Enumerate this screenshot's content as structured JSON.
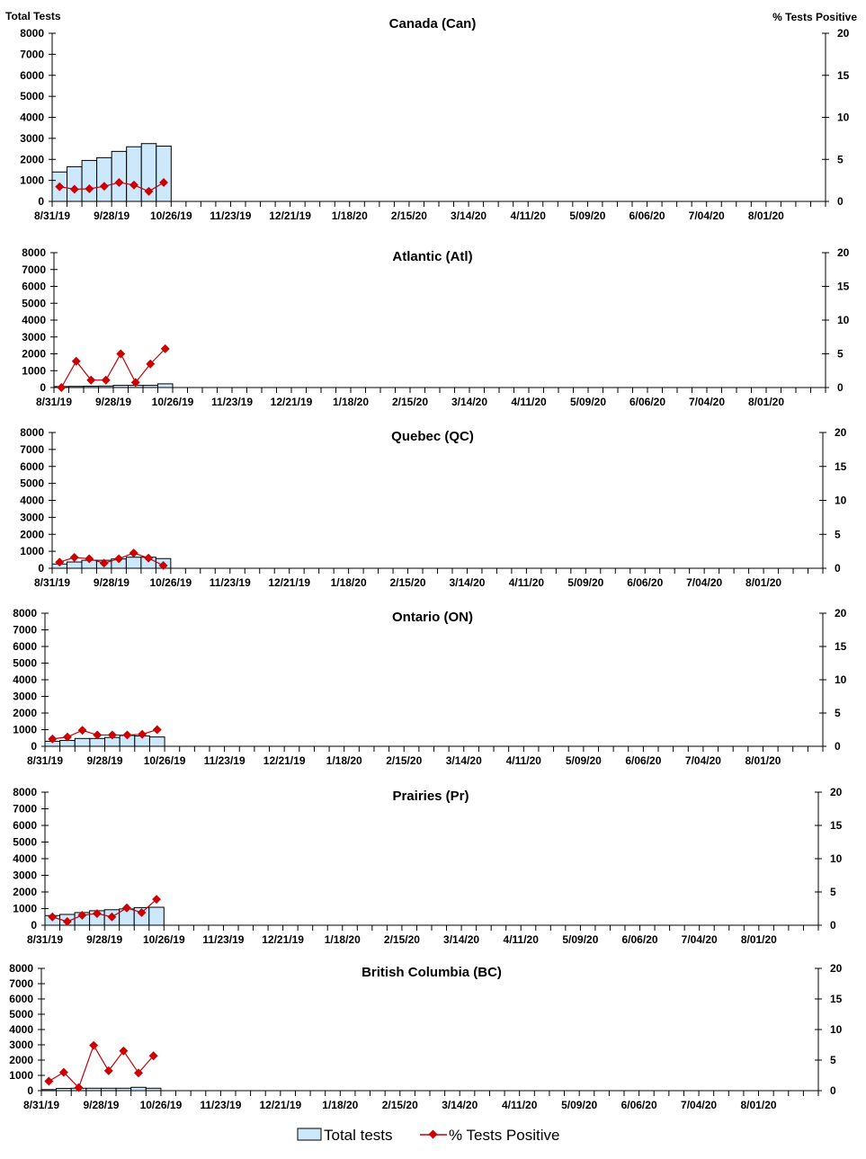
{
  "chart_data": [
    {
      "type": "bar+line",
      "title": "Canada (Can)",
      "ylabel": "Total Tests",
      "y2label": "% Tests Positive",
      "ylim": [
        0,
        8000
      ],
      "y2lim": [
        0,
        20
      ],
      "x": [
        "8/31/19",
        "9/07/19",
        "9/14/19",
        "9/21/19",
        "9/28/19",
        "10/05/19",
        "10/12/19",
        "10/19/19"
      ],
      "series": [
        {
          "name": "Total tests",
          "type": "bar",
          "axis": "left",
          "values": [
            1400,
            1650,
            1950,
            2080,
            2380,
            2600,
            2750,
            2630
          ]
        },
        {
          "name": "% Tests Positive",
          "type": "line",
          "axis": "right",
          "values": [
            1.75,
            1.45,
            1.5,
            1.8,
            2.25,
            1.95,
            1.2,
            2.25
          ]
        }
      ]
    },
    {
      "type": "bar+line",
      "title": "Atlantic (Atl)",
      "ylim": [
        0,
        8000
      ],
      "y2lim": [
        0,
        20
      ],
      "x": [
        "8/31/19",
        "9/07/19",
        "9/14/19",
        "9/21/19",
        "9/28/19",
        "10/05/19",
        "10/12/19",
        "10/19/19"
      ],
      "series": [
        {
          "name": "Total tests",
          "type": "bar",
          "axis": "left",
          "values": [
            60,
            70,
            80,
            90,
            130,
            130,
            130,
            220
          ]
        },
        {
          "name": "% Tests Positive",
          "type": "line",
          "axis": "right",
          "values": [
            0,
            3.9,
            1.1,
            1.1,
            5.0,
            0.75,
            3.5,
            5.75
          ]
        }
      ]
    },
    {
      "type": "bar+line",
      "title": "Quebec (QC)",
      "ylim": [
        0,
        8000
      ],
      "y2lim": [
        0,
        20
      ],
      "x": [
        "8/31/19",
        "9/07/19",
        "9/14/19",
        "9/21/19",
        "9/28/19",
        "10/05/19",
        "10/12/19",
        "10/19/19"
      ],
      "series": [
        {
          "name": "Total tests",
          "type": "bar",
          "axis": "left",
          "values": [
            250,
            370,
            470,
            470,
            550,
            650,
            650,
            570
          ]
        },
        {
          "name": "% Tests Positive",
          "type": "line",
          "axis": "right",
          "values": [
            0.9,
            1.6,
            1.4,
            0.75,
            1.4,
            2.25,
            1.5,
            0.4
          ]
        }
      ]
    },
    {
      "type": "bar+line",
      "title": "Ontario (ON)",
      "ylim": [
        0,
        8000
      ],
      "y2lim": [
        0,
        20
      ],
      "x": [
        "8/31/19",
        "9/07/19",
        "9/14/19",
        "9/21/19",
        "9/28/19",
        "10/05/19",
        "10/12/19",
        "10/19/19"
      ],
      "series": [
        {
          "name": "Total tests",
          "type": "bar",
          "axis": "left",
          "values": [
            300,
            350,
            470,
            470,
            530,
            650,
            620,
            560
          ]
        },
        {
          "name": "% Tests Positive",
          "type": "line",
          "axis": "right",
          "values": [
            1.1,
            1.4,
            2.4,
            1.7,
            1.7,
            1.7,
            1.8,
            2.5
          ]
        }
      ]
    },
    {
      "type": "bar+line",
      "title": "Prairies (Pr)",
      "ylim": [
        0,
        8000
      ],
      "y2lim": [
        0,
        20
      ],
      "x": [
        "8/31/19",
        "9/07/19",
        "9/14/19",
        "9/21/19",
        "9/28/19",
        "10/05/19",
        "10/12/19",
        "10/19/19"
      ],
      "series": [
        {
          "name": "Total tests",
          "type": "bar",
          "axis": "left",
          "values": [
            580,
            650,
            760,
            870,
            930,
            980,
            1060,
            1080
          ]
        },
        {
          "name": "% Tests Positive",
          "type": "line",
          "axis": "right",
          "values": [
            1.25,
            0.55,
            1.5,
            1.75,
            1.25,
            2.6,
            1.9,
            3.9
          ]
        }
      ]
    },
    {
      "type": "bar+line",
      "title": "British Columbia (BC)",
      "ylim": [
        0,
        8000
      ],
      "y2lim": [
        0,
        20
      ],
      "x": [
        "8/31/19",
        "9/07/19",
        "9/14/19",
        "9/21/19",
        "9/28/19",
        "10/05/19",
        "10/12/19",
        "10/19/19"
      ],
      "series": [
        {
          "name": "Total tests",
          "type": "bar",
          "axis": "left",
          "values": [
            70,
            150,
            160,
            160,
            160,
            160,
            220,
            160
          ]
        },
        {
          "name": "% Tests Positive",
          "type": "line",
          "axis": "right",
          "values": [
            1.55,
            3.0,
            0.5,
            7.4,
            3.25,
            6.5,
            2.9,
            5.7
          ]
        }
      ]
    }
  ],
  "xtick_labels": [
    "8/31/19",
    "9/28/19",
    "10/26/19",
    "11/23/19",
    "12/21/19",
    "1/18/20",
    "2/15/20",
    "3/14/20",
    "4/11/20",
    "5/09/20",
    "6/06/20",
    "7/04/20",
    "8/01/20"
  ],
  "yticks": [
    0,
    1000,
    2000,
    3000,
    4000,
    5000,
    6000,
    7000,
    8000
  ],
  "y2ticks": [
    0,
    5,
    10,
    15,
    20
  ],
  "weeks_on_axis": 52,
  "axis_labels": {
    "left": "Total Tests",
    "right": "% Tests Positive"
  },
  "legend": {
    "bar": "Total tests",
    "line": "% Tests Positive"
  },
  "colors": {
    "bar_fill": "#cce8fa",
    "bar_stroke": "#000000",
    "line": "#c0000c",
    "marker": "#cc0000"
  }
}
